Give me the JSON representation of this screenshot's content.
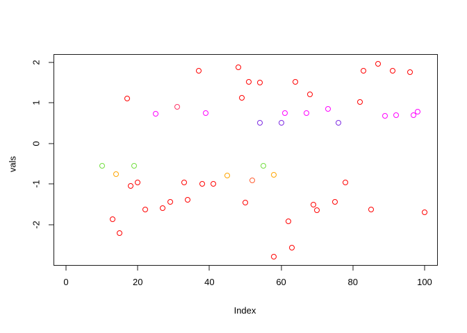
{
  "chart_data": {
    "type": "scatter",
    "title": "",
    "xlabel": "Index",
    "ylabel": "vals",
    "xlim": [
      -3.3,
      103.5
    ],
    "ylim": [
      -3.0,
      2.18
    ],
    "x_ticks": [
      0,
      20,
      40,
      60,
      80,
      100
    ],
    "y_ticks": [
      -2,
      -1,
      0,
      1,
      2
    ],
    "grid": false,
    "legend": "none",
    "marker": "open-circle",
    "colors": {
      "red": "#FF0000",
      "magenta": "#FF00FF",
      "purple": "#7D2BE2",
      "green": "#72DE3E",
      "orange": "#FFA500",
      "orange_red": "#FF5E33",
      "pink": "#FF3366"
    },
    "points": [
      {
        "x": 10,
        "y": -0.55,
        "color": "#72DE3E"
      },
      {
        "x": 13,
        "y": -1.88,
        "color": "#FF0000"
      },
      {
        "x": 14,
        "y": -0.76,
        "color": "#FFA500"
      },
      {
        "x": 15,
        "y": -2.22,
        "color": "#FF0000"
      },
      {
        "x": 17,
        "y": 1.1,
        "color": "#FF0000"
      },
      {
        "x": 18,
        "y": -1.05,
        "color": "#FF0000"
      },
      {
        "x": 19,
        "y": -0.55,
        "color": "#72DE3E"
      },
      {
        "x": 20,
        "y": -0.97,
        "color": "#FF0000"
      },
      {
        "x": 22,
        "y": -1.63,
        "color": "#FF0000"
      },
      {
        "x": 25,
        "y": 0.72,
        "color": "#FF00FF"
      },
      {
        "x": 27,
        "y": -1.6,
        "color": "#FF0000"
      },
      {
        "x": 29,
        "y": -1.45,
        "color": "#FF0000"
      },
      {
        "x": 31,
        "y": 0.9,
        "color": "#FF3366"
      },
      {
        "x": 33,
        "y": -0.97,
        "color": "#FF0000"
      },
      {
        "x": 34,
        "y": -1.4,
        "color": "#FF0000"
      },
      {
        "x": 37,
        "y": 1.78,
        "color": "#FF0000"
      },
      {
        "x": 38,
        "y": -1.0,
        "color": "#FF0000"
      },
      {
        "x": 39,
        "y": 0.74,
        "color": "#FF00FF"
      },
      {
        "x": 41,
        "y": -1.0,
        "color": "#FF0000"
      },
      {
        "x": 45,
        "y": -0.8,
        "color": "#FFA500"
      },
      {
        "x": 48,
        "y": 1.88,
        "color": "#FF0000"
      },
      {
        "x": 49,
        "y": 1.12,
        "color": "#FF0000"
      },
      {
        "x": 50,
        "y": -1.46,
        "color": "#FF0000"
      },
      {
        "x": 51,
        "y": 1.52,
        "color": "#FF0000"
      },
      {
        "x": 52,
        "y": -0.92,
        "color": "#FF5E33"
      },
      {
        "x": 54,
        "y": 1.5,
        "color": "#FF0000"
      },
      {
        "x": 54,
        "y": 0.5,
        "color": "#7D2BE2"
      },
      {
        "x": 55,
        "y": -0.56,
        "color": "#72DE3E"
      },
      {
        "x": 58,
        "y": -0.78,
        "color": "#FFA500"
      },
      {
        "x": 58,
        "y": -2.8,
        "color": "#FF0000"
      },
      {
        "x": 60,
        "y": 0.5,
        "color": "#7D2BE2"
      },
      {
        "x": 61,
        "y": 0.75,
        "color": "#FF00FF"
      },
      {
        "x": 62,
        "y": -1.92,
        "color": "#FF0000"
      },
      {
        "x": 63,
        "y": -2.58,
        "color": "#FF0000"
      },
      {
        "x": 64,
        "y": 1.52,
        "color": "#FF0000"
      },
      {
        "x": 67,
        "y": 0.74,
        "color": "#FF00FF"
      },
      {
        "x": 68,
        "y": 1.2,
        "color": "#FF0000"
      },
      {
        "x": 69,
        "y": -1.52,
        "color": "#FF0000"
      },
      {
        "x": 70,
        "y": -1.65,
        "color": "#FF0000"
      },
      {
        "x": 73,
        "y": 0.84,
        "color": "#FF00FF"
      },
      {
        "x": 75,
        "y": -1.44,
        "color": "#FF0000"
      },
      {
        "x": 76,
        "y": 0.5,
        "color": "#7D2BE2"
      },
      {
        "x": 78,
        "y": -0.97,
        "color": "#FF0000"
      },
      {
        "x": 82,
        "y": 1.02,
        "color": "#FF0000"
      },
      {
        "x": 83,
        "y": 1.78,
        "color": "#FF0000"
      },
      {
        "x": 85,
        "y": -1.63,
        "color": "#FF0000"
      },
      {
        "x": 87,
        "y": 1.95,
        "color": "#FF0000"
      },
      {
        "x": 89,
        "y": 0.68,
        "color": "#FF00FF"
      },
      {
        "x": 91,
        "y": 1.78,
        "color": "#FF0000"
      },
      {
        "x": 92,
        "y": 0.7,
        "color": "#FF00FF"
      },
      {
        "x": 96,
        "y": 1.75,
        "color": "#FF0000"
      },
      {
        "x": 97,
        "y": 0.69,
        "color": "#FF00FF"
      },
      {
        "x": 98,
        "y": 0.78,
        "color": "#FF00FF"
      },
      {
        "x": 100,
        "y": -1.7,
        "color": "#FF0000"
      }
    ]
  }
}
